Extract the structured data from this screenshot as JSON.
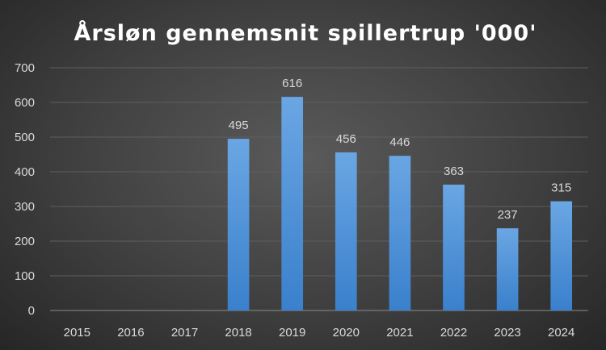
{
  "chart_data": {
    "type": "bar",
    "title": "Årsløn gennemsnit spillertrup '000'",
    "categories": [
      "2015",
      "2016",
      "2017",
      "2018",
      "2019",
      "2020",
      "2021",
      "2022",
      "2023",
      "2024"
    ],
    "values": [
      null,
      null,
      null,
      495,
      616,
      456,
      446,
      363,
      237,
      315
    ],
    "ylim": [
      0,
      700
    ],
    "yticks": [
      0,
      100,
      200,
      300,
      400,
      500,
      600,
      700
    ],
    "grid": true,
    "bar_color": "#4a90d9",
    "data_labels": true
  }
}
